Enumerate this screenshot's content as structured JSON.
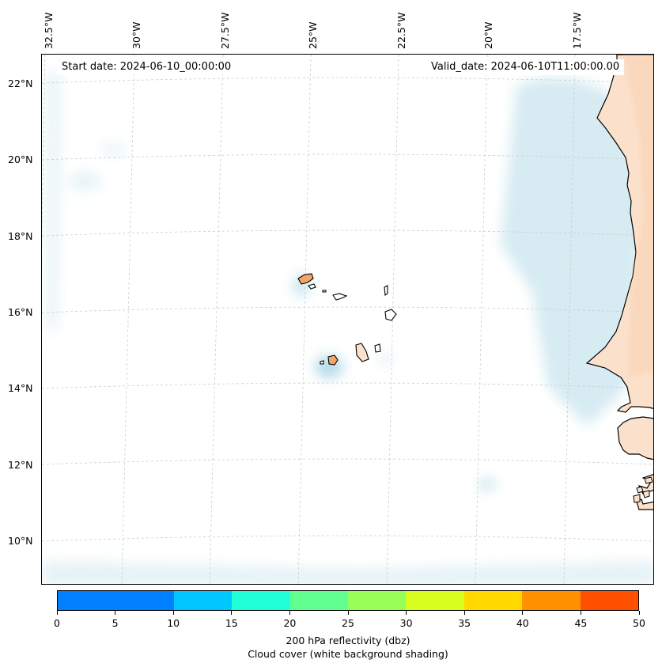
{
  "header": {
    "start_date": "Start date: 2024-06-10_00:00:00",
    "valid_date": "Valid_date: 2024-06-10T11:00:00.00"
  },
  "axes": {
    "longitude_labels": [
      "32.5°W",
      "30°W",
      "27.5°W",
      "25°W",
      "22.5°W",
      "20°W",
      "17.5°W"
    ],
    "latitude_labels": [
      "22°N",
      "20°N",
      "18°N",
      "16°N",
      "14°N",
      "12°N",
      "10°N"
    ]
  },
  "colorbar": {
    "ticks": [
      "0",
      "5",
      "10",
      "15",
      "20",
      "25",
      "30",
      "35",
      "40",
      "45",
      "50"
    ],
    "colors": [
      "#0080ff",
      "#00c8ff",
      "#20ffd8",
      "#60ff90",
      "#98ff58",
      "#d8ff20",
      "#ffd800",
      "#ff9000",
      "#ff5000"
    ],
    "label_line1": "200 hPa reflectivity (dbz)",
    "label_line2": "Cloud cover (white background shading)"
  },
  "style": {
    "land_color": "#fbe1cc",
    "cloud_color": "#cfe8f0",
    "grid_color": "#cccccc"
  }
}
